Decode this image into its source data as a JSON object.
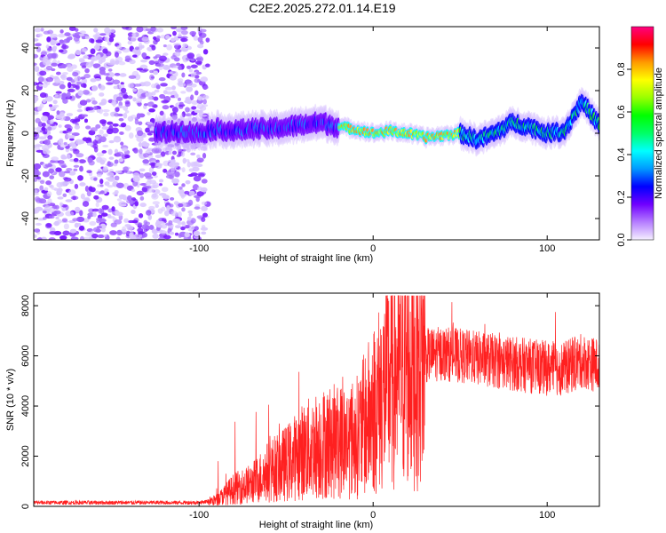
{
  "title": "C2E2.2025.272.01.14.E19",
  "chart_data": [
    {
      "type": "heatmap",
      "name": "spectrogram",
      "xlabel": "Height of straight line (km)",
      "ylabel": "Frequency (Hz)",
      "xlim": [
        -195,
        130
      ],
      "ylim": [
        -50,
        50
      ],
      "xticks": [
        -100,
        0,
        100
      ],
      "yticks": [
        -40,
        -20,
        0,
        20,
        40
      ],
      "colorbar": {
        "label": "Normalized spectral amplitude",
        "range": [
          0,
          1
        ],
        "ticks": [
          0.0,
          0.2,
          0.4,
          0.6,
          0.8
        ],
        "tick_labels": [
          "0.0",
          "0.2",
          "0.4",
          "0.6",
          "0.8"
        ],
        "colormap": [
          "#f5f0ff",
          "#b57dff",
          "#7000ff",
          "#0000ff",
          "#0099ff",
          "#00ffff",
          "#00ff66",
          "#00ff00",
          "#99ff00",
          "#ffff00",
          "#ff9900",
          "#ff0000",
          "#ff0080"
        ]
      },
      "noise_region_x": [
        -195,
        -95
      ],
      "ridge": [
        [
          -125,
          0
        ],
        [
          -110,
          1
        ],
        [
          -100,
          0
        ],
        [
          -90,
          2
        ],
        [
          -80,
          1
        ],
        [
          -70,
          2
        ],
        [
          -60,
          2
        ],
        [
          -50,
          3
        ],
        [
          -40,
          4
        ],
        [
          -30,
          5
        ],
        [
          -20,
          3
        ],
        [
          -10,
          2
        ],
        [
          0,
          0
        ],
        [
          10,
          1
        ],
        [
          20,
          0
        ],
        [
          30,
          -2
        ],
        [
          40,
          -1
        ],
        [
          50,
          0
        ],
        [
          60,
          -3
        ],
        [
          70,
          0
        ],
        [
          80,
          5
        ],
        [
          90,
          3
        ],
        [
          100,
          0
        ],
        [
          110,
          1
        ],
        [
          120,
          15
        ],
        [
          130,
          4
        ]
      ]
    },
    {
      "type": "line",
      "name": "snr",
      "xlabel": "Height of straight line (km)",
      "ylabel": "SNR (10 * v/v)",
      "xlim": [
        -195,
        130
      ],
      "ylim": [
        0,
        8500
      ],
      "xticks": [
        -100,
        0,
        100
      ],
      "yticks": [
        0,
        2000,
        4000,
        6000,
        8000
      ],
      "color": "#ff2020",
      "envelope_x": [
        -195,
        -100,
        -90,
        -80,
        -70,
        -60,
        -50,
        -40,
        -30,
        -20,
        -10,
        0,
        10,
        20,
        30,
        40,
        50,
        60,
        70,
        80,
        90,
        100,
        110,
        120,
        130
      ],
      "envelope_y": [
        150,
        150,
        250,
        700,
        900,
        1400,
        1700,
        2200,
        2500,
        2600,
        2700,
        3800,
        5200,
        5700,
        6000,
        6100,
        6000,
        5900,
        5800,
        5700,
        5600,
        5500,
        5500,
        5800,
        5600
      ]
    }
  ]
}
